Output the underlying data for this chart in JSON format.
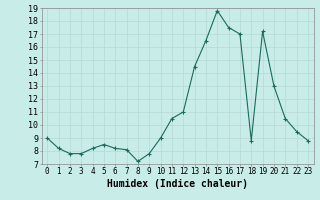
{
  "x": [
    0,
    1,
    2,
    3,
    4,
    5,
    6,
    7,
    8,
    9,
    10,
    11,
    12,
    13,
    14,
    15,
    16,
    17,
    18,
    19,
    20,
    21,
    22,
    23
  ],
  "y": [
    9.0,
    8.2,
    7.8,
    7.8,
    8.2,
    8.5,
    8.2,
    8.1,
    7.2,
    7.8,
    9.0,
    10.5,
    11.0,
    14.5,
    16.5,
    18.8,
    17.5,
    17.0,
    8.8,
    17.2,
    13.0,
    10.5,
    9.5,
    8.8
  ],
  "line_color": "#1a6b5a",
  "marker": "+",
  "marker_size": 3,
  "marker_lw": 0.8,
  "line_width": 0.8,
  "bg_color": "#c8ece8",
  "grid_color": "#b8d8d4",
  "xlabel": "Humidex (Indice chaleur)",
  "xlabel_fontsize": 7,
  "ylim": [
    7,
    19
  ],
  "xlim": [
    -0.5,
    23.5
  ],
  "yticks": [
    7,
    8,
    9,
    10,
    11,
    12,
    13,
    14,
    15,
    16,
    17,
    18,
    19
  ],
  "xticks": [
    0,
    1,
    2,
    3,
    4,
    5,
    6,
    7,
    8,
    9,
    10,
    11,
    12,
    13,
    14,
    15,
    16,
    17,
    18,
    19,
    20,
    21,
    22,
    23
  ],
  "ytick_fontsize": 6,
  "xtick_fontsize": 5.5,
  "spine_color": "#888888"
}
